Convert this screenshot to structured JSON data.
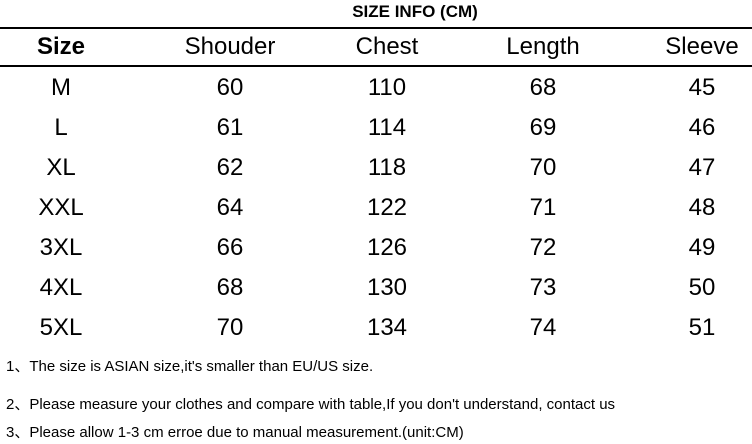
{
  "title": "SIZE INFO (CM)",
  "table": {
    "headers": [
      "Size",
      "Shouder",
      "Chest",
      "Length",
      "Sleeve"
    ],
    "rows": [
      [
        "M",
        "60",
        "110",
        "68",
        "45"
      ],
      [
        "L",
        "61",
        "114",
        "69",
        "46"
      ],
      [
        "XL",
        "62",
        "118",
        "70",
        "47"
      ],
      [
        "XXL",
        "64",
        "122",
        "71",
        "48"
      ],
      [
        "3XL",
        "66",
        "126",
        "72",
        "49"
      ],
      [
        "4XL",
        "68",
        "130",
        "73",
        "50"
      ],
      [
        "5XL",
        "70",
        "134",
        "74",
        "51"
      ]
    ]
  },
  "notes": [
    "1、The size is ASIAN size,it's smaller than EU/US size.",
    "2、Please measure your clothes and compare with table,If you don't understand, contact us",
    "3、Please allow 1-3 cm erroe due to manual measurement.(unit:CM)"
  ]
}
